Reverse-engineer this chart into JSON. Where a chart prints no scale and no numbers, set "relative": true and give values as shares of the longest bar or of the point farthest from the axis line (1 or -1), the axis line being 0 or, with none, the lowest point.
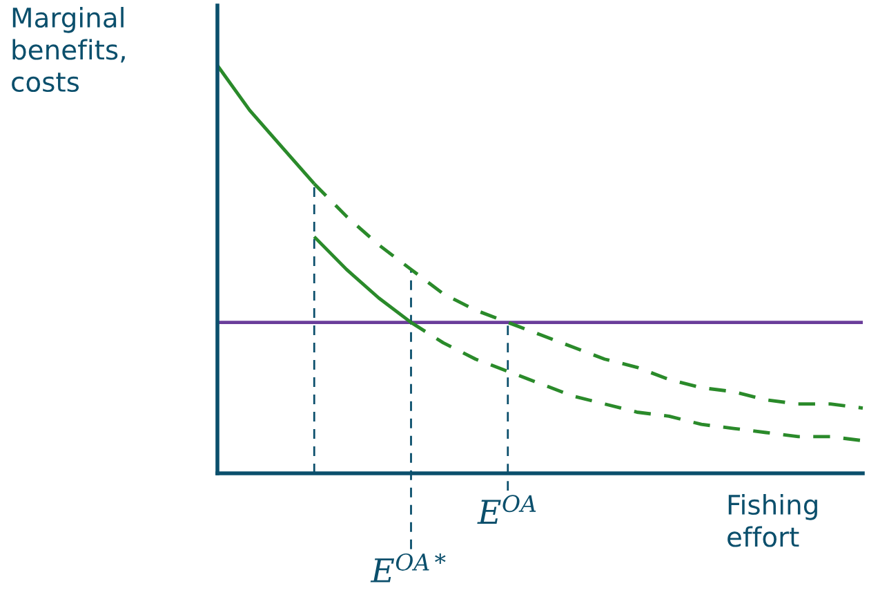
{
  "chart_data": {
    "type": "line",
    "relative": true,
    "xlabel": "Fishing\neffort",
    "ylabel": "Marginal\nbenefits,\ncosts",
    "categories": [
      null,
      null,
      null,
      null,
      null,
      null,
      null,
      null,
      null,
      null,
      null,
      null,
      null,
      null,
      null,
      null,
      null,
      null,
      null,
      null,
      null
    ],
    "legend": false,
    "marker": "none",
    "series": [
      {
        "color": "#2a8a2a",
        "line_style": "solid",
        "values": [
          1.0,
          0.89,
          0.8,
          0.71,
          null,
          null,
          null,
          null,
          null,
          null,
          null,
          null,
          null,
          null,
          null,
          null,
          null,
          null,
          null,
          null,
          null
        ]
      },
      {
        "color": "#2a8a2a",
        "line_style": "dashed",
        "values": [
          null,
          null,
          null,
          0.71,
          0.63,
          0.56,
          0.5,
          0.44,
          0.4,
          0.37,
          0.34,
          0.31,
          0.28,
          0.26,
          0.23,
          0.21,
          0.2,
          0.18,
          0.17,
          0.17,
          0.16
        ]
      },
      {
        "color": "#2a8a2a",
        "line_style": "solid",
        "values": [
          null,
          null,
          null,
          0.58,
          0.5,
          0.43,
          0.37,
          null,
          null,
          null,
          null,
          null,
          null,
          null,
          null,
          null,
          null,
          null,
          null,
          null,
          null
        ]
      },
      {
        "color": "#2a8a2a",
        "line_style": "dashed",
        "values": [
          null,
          null,
          null,
          null,
          null,
          null,
          0.37,
          0.32,
          0.28,
          0.25,
          0.22,
          0.19,
          0.17,
          0.15,
          0.14,
          0.12,
          0.11,
          0.1,
          0.09,
          0.09,
          0.08
        ]
      }
    ],
    "ref_lines": [
      {
        "axis": "y",
        "value": 0.37,
        "color": "#6a3d9a",
        "line_style": "solid"
      }
    ],
    "annotations": [
      "E$^{OA*}$",
      "E$^{OA}$"
    ]
  }
}
